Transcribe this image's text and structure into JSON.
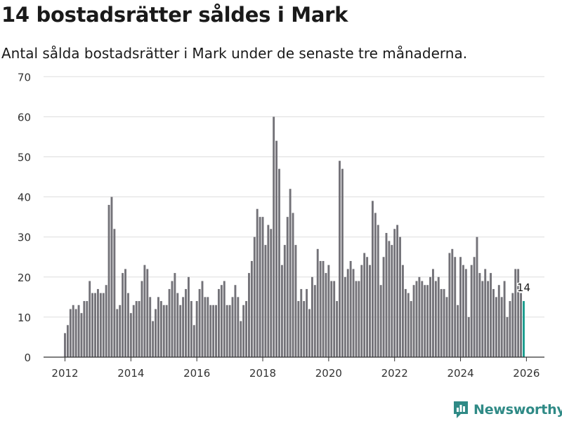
{
  "title": "14 bostadsrätter såldes i Mark",
  "subtitle": "Antal sålda bostadsrätter i Mark under de senaste tre månaderna.",
  "brand": "Newsworthy",
  "colors": {
    "bar": "#737278",
    "highlight": "#1a9c8e",
    "grid": "#dddddd",
    "brand": "#2f8a86"
  },
  "chart_data": {
    "type": "bar",
    "title": "14 bostadsrätter såldes i Mark",
    "xlabel": "",
    "ylabel": "",
    "ylim": [
      0,
      70
    ],
    "yticks": [
      0,
      10,
      20,
      30,
      40,
      50,
      60,
      70
    ],
    "xticks": [
      "2012",
      "2014",
      "2016",
      "2018",
      "2020",
      "2022",
      "2024",
      "2026"
    ],
    "x_start": "2012-01",
    "highlight_label": "14",
    "values": [
      6,
      8,
      12,
      13,
      12,
      13,
      11,
      14,
      14,
      19,
      16,
      16,
      17,
      16,
      16,
      18,
      38,
      40,
      32,
      12,
      13,
      21,
      22,
      16,
      11,
      13,
      14,
      14,
      19,
      23,
      22,
      15,
      9,
      12,
      15,
      14,
      13,
      13,
      17,
      19,
      21,
      16,
      13,
      15,
      17,
      20,
      14,
      8,
      14,
      17,
      19,
      15,
      15,
      13,
      13,
      13,
      17,
      18,
      19,
      13,
      13,
      15,
      18,
      15,
      9,
      13,
      14,
      21,
      24,
      30,
      37,
      35,
      35,
      28,
      33,
      32,
      60,
      54,
      47,
      23,
      28,
      35,
      42,
      36,
      28,
      14,
      17,
      14,
      17,
      12,
      20,
      18,
      27,
      24,
      24,
      21,
      23,
      19,
      19,
      14,
      49,
      47,
      20,
      22,
      24,
      22,
      19,
      19,
      23,
      26,
      25,
      23,
      39,
      36,
      33,
      18,
      25,
      31,
      29,
      28,
      32,
      33,
      30,
      23,
      17,
      16,
      14,
      18,
      19,
      20,
      19,
      18,
      18,
      20,
      22,
      19,
      20,
      17,
      17,
      15,
      26,
      27,
      25,
      13,
      25,
      23,
      22,
      10,
      23,
      25,
      30,
      21,
      19,
      22,
      19,
      21,
      17,
      15,
      18,
      15,
      19,
      10,
      14,
      16,
      22,
      22,
      16,
      14
    ],
    "series": [
      {
        "name": "Antal sålda bostadsrätter",
        "values": "see values"
      }
    ]
  }
}
